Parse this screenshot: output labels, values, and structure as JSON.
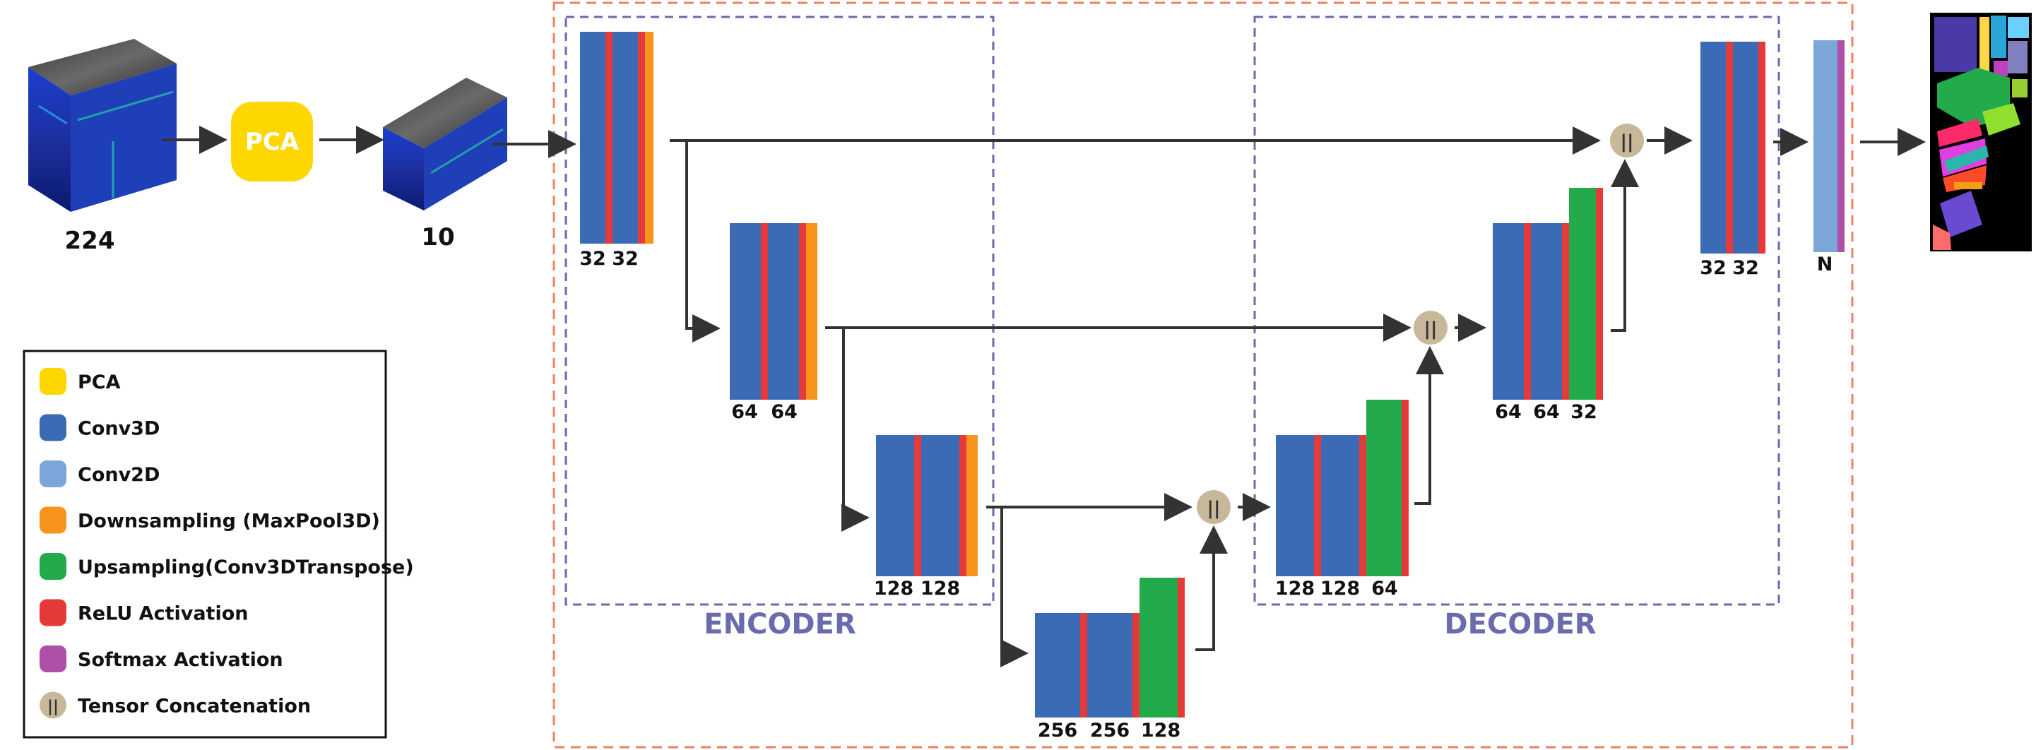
{
  "colors": {
    "pca": "#FFD700",
    "conv3d": "#3C6BB5",
    "conv2d": "#7BA6DA",
    "downsampling": "#F7941D",
    "upsampling": "#22AA4B",
    "relu": "#E63A3A",
    "softmax": "#B04FA8",
    "concat": "#C8B89A",
    "encoder_frame": "#6A6AAE",
    "outer_frame": "#F08060",
    "arrow": "#333333"
  },
  "inputs": {
    "original_bands": "224",
    "pca_label": "PCA",
    "reduced_bands": "10"
  },
  "sections": {
    "encoder": "ENCODER",
    "decoder": "DECODER"
  },
  "blocks": {
    "enc1": [
      "32",
      "32"
    ],
    "enc2": [
      "64",
      "64"
    ],
    "enc3": [
      "128",
      "128"
    ],
    "bottleneck": [
      "256",
      "256",
      "128"
    ],
    "dec3": [
      "128",
      "128",
      "64"
    ],
    "dec2": [
      "64",
      "64",
      "32"
    ],
    "dec1": [
      "32",
      "32"
    ],
    "output": "N"
  },
  "concat_symbol": "||",
  "legend": [
    {
      "label": "PCA",
      "color": "#FFD700",
      "icon": "square"
    },
    {
      "label": "Conv3D",
      "color": "#3C6BB5",
      "icon": "square"
    },
    {
      "label": "Conv2D",
      "color": "#7BA6DA",
      "icon": "square"
    },
    {
      "label": "Downsampling (MaxPool3D)",
      "color": "#F7941D",
      "icon": "square"
    },
    {
      "label": "Upsampling(Conv3DTranspose)",
      "color": "#22AA4B",
      "icon": "square"
    },
    {
      "label": "ReLU Activation",
      "color": "#E63A3A",
      "icon": "square"
    },
    {
      "label": "Softmax Activation",
      "color": "#B04FA8",
      "icon": "square"
    },
    {
      "label": "Tensor Concatenation",
      "color": "#C8B89A",
      "icon": "concat-circle"
    }
  ]
}
